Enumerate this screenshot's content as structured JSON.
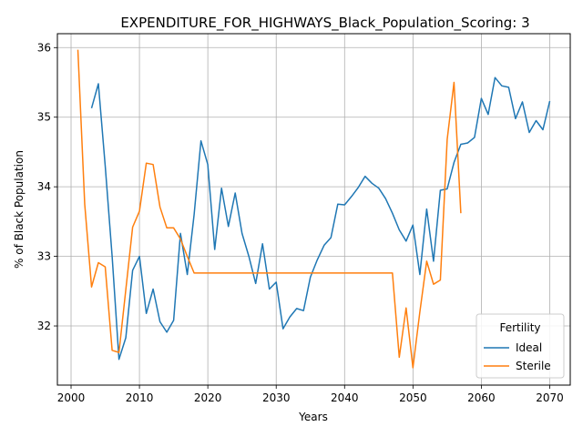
{
  "chart_data": {
    "type": "line",
    "title": "EXPENDITURE_FOR_HIGHWAYS_Black_Population_Scoring: 3",
    "xlabel": "Years",
    "ylabel": "% of Black Population",
    "xlim": [
      1998,
      2073
    ],
    "ylim": [
      31.15,
      36.2
    ],
    "x_ticks": [
      2000,
      2010,
      2020,
      2030,
      2040,
      2050,
      2060,
      2070
    ],
    "y_ticks": [
      32,
      33,
      34,
      35,
      36
    ],
    "grid": true,
    "legend": {
      "title": "Fertility",
      "placement": "lower-right"
    },
    "series": [
      {
        "name": "Ideal",
        "color": "#1f77b4",
        "x": [
          2003,
          2004,
          2005,
          2006,
          2007,
          2008,
          2009,
          2010,
          2011,
          2012,
          2013,
          2014,
          2015,
          2016,
          2017,
          2018,
          2019,
          2020,
          2021,
          2022,
          2023,
          2024,
          2025,
          2026,
          2027,
          2028,
          2029,
          2030,
          2031,
          2032,
          2033,
          2034,
          2035,
          2036,
          2037,
          2038,
          2039,
          2040,
          2041,
          2042,
          2043,
          2044,
          2045,
          2046,
          2047,
          2048,
          2049,
          2050,
          2051,
          2052,
          2053,
          2054,
          2055,
          2056,
          2057,
          2058,
          2059,
          2060,
          2061,
          2062,
          2063,
          2064,
          2065,
          2066,
          2067,
          2068,
          2069,
          2070
        ],
        "values": [
          35.13,
          35.48,
          34.3,
          33.0,
          31.52,
          31.83,
          32.8,
          33.0,
          32.18,
          32.53,
          32.06,
          31.91,
          32.08,
          33.33,
          32.74,
          33.6,
          34.66,
          34.32,
          33.1,
          33.98,
          33.43,
          33.91,
          33.33,
          33.0,
          32.61,
          33.18,
          32.53,
          32.63,
          31.96,
          32.13,
          32.25,
          32.22,
          32.7,
          32.95,
          33.16,
          33.27,
          33.75,
          33.74,
          33.86,
          33.99,
          34.15,
          34.05,
          33.98,
          33.83,
          33.62,
          33.38,
          33.22,
          33.45,
          32.74,
          33.68,
          32.93,
          33.95,
          33.97,
          34.35,
          34.61,
          34.63,
          34.71,
          35.27,
          35.04,
          35.57,
          35.45,
          35.43,
          34.98,
          35.22,
          34.78,
          34.95,
          34.82,
          35.23
        ]
      },
      {
        "name": "Sterile",
        "color": "#ff7f0e",
        "x": [
          2001,
          2002,
          2003,
          2004,
          2005,
          2006,
          2007,
          2008,
          2009,
          2010,
          2011,
          2012,
          2013,
          2014,
          2015,
          2016,
          2017,
          2018,
          2019,
          2020,
          2021,
          2022,
          2023,
          2024,
          2025,
          2026,
          2027,
          2028,
          2029,
          2030,
          2031,
          2032,
          2033,
          2034,
          2035,
          2036,
          2037,
          2038,
          2039,
          2040,
          2041,
          2042,
          2043,
          2044,
          2045,
          2046,
          2047,
          2048,
          2049,
          2050,
          2051,
          2052,
          2053,
          2054,
          2055,
          2056,
          2057
        ],
        "values": [
          35.97,
          33.75,
          32.56,
          32.91,
          32.85,
          31.65,
          31.62,
          32.52,
          33.42,
          33.65,
          34.34,
          34.32,
          33.71,
          33.41,
          33.41,
          33.25,
          33.0,
          32.76,
          32.76,
          32.76,
          32.76,
          32.76,
          32.76,
          32.76,
          32.76,
          32.76,
          32.76,
          32.76,
          32.76,
          32.76,
          32.76,
          32.76,
          32.76,
          32.76,
          32.76,
          32.76,
          32.76,
          32.76,
          32.76,
          32.76,
          32.76,
          32.76,
          32.76,
          32.76,
          32.76,
          32.76,
          32.76,
          31.55,
          32.26,
          31.4,
          32.2,
          32.93,
          32.6,
          32.66,
          34.68,
          35.5,
          33.62
        ]
      }
    ]
  }
}
